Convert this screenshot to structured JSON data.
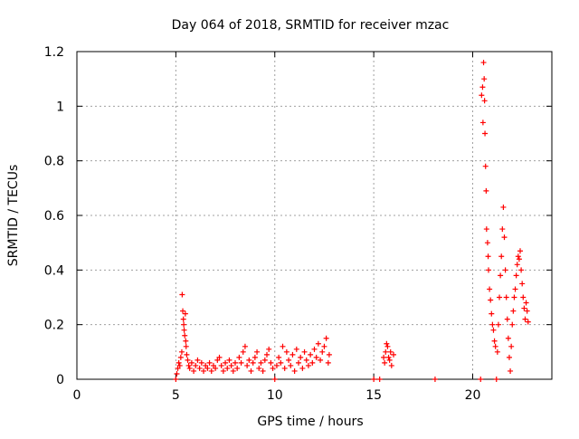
{
  "chart_data": {
    "type": "scatter",
    "title": "Day 064 of 2018, SRMTID for receiver mzac",
    "xlabel": "GPS time / hours",
    "ylabel": "SRMTID / TECUs",
    "xlim": [
      0,
      24
    ],
    "ylim": [
      0,
      1.2
    ],
    "xticks": [
      0,
      5,
      10,
      15,
      20
    ],
    "xtick_labels": [
      "0",
      "5",
      "10",
      "15",
      "20"
    ],
    "yticks": [
      0,
      0.2,
      0.4,
      0.6,
      0.8,
      1.0,
      1.2
    ],
    "ytick_labels": [
      "0",
      "0.2",
      "0.4",
      "0.6",
      "0.8",
      "1",
      "1.2"
    ],
    "grid": true,
    "marker": "+",
    "marker_color": "#ff0000",
    "series": [
      {
        "points": [
          [
            5.0,
            0.0
          ],
          [
            5.05,
            0.02
          ],
          [
            5.1,
            0.04
          ],
          [
            5.15,
            0.06
          ],
          [
            5.2,
            0.05
          ],
          [
            5.25,
            0.08
          ],
          [
            5.3,
            0.1
          ],
          [
            5.32,
            0.31
          ],
          [
            5.35,
            0.25
          ],
          [
            5.38,
            0.22
          ],
          [
            5.4,
            0.2
          ],
          [
            5.42,
            0.18
          ],
          [
            5.45,
            0.16
          ],
          [
            5.48,
            0.24
          ],
          [
            5.5,
            0.14
          ],
          [
            5.52,
            0.12
          ],
          [
            5.55,
            0.09
          ],
          [
            5.6,
            0.07
          ],
          [
            5.65,
            0.05
          ],
          [
            5.7,
            0.04
          ],
          [
            5.8,
            0.06
          ],
          [
            5.9,
            0.03
          ],
          [
            6.0,
            0.05
          ],
          [
            6.1,
            0.07
          ],
          [
            6.2,
            0.04
          ],
          [
            6.3,
            0.06
          ],
          [
            6.4,
            0.03
          ],
          [
            6.5,
            0.05
          ],
          [
            6.6,
            0.04
          ],
          [
            6.7,
            0.06
          ],
          [
            6.8,
            0.03
          ],
          [
            6.9,
            0.05
          ],
          [
            7.0,
            0.04
          ],
          [
            7.1,
            0.07
          ],
          [
            7.2,
            0.08
          ],
          [
            7.3,
            0.05
          ],
          [
            7.4,
            0.03
          ],
          [
            7.5,
            0.06
          ],
          [
            7.6,
            0.04
          ],
          [
            7.7,
            0.07
          ],
          [
            7.8,
            0.05
          ],
          [
            7.9,
            0.03
          ],
          [
            8.0,
            0.06
          ],
          [
            8.1,
            0.04
          ],
          [
            8.2,
            0.08
          ],
          [
            8.3,
            0.06
          ],
          [
            8.4,
            0.1
          ],
          [
            8.5,
            0.12
          ],
          [
            8.6,
            0.05
          ],
          [
            8.7,
            0.07
          ],
          [
            8.8,
            0.03
          ],
          [
            8.9,
            0.06
          ],
          [
            9.0,
            0.08
          ],
          [
            9.1,
            0.1
          ],
          [
            9.2,
            0.04
          ],
          [
            9.3,
            0.06
          ],
          [
            9.4,
            0.03
          ],
          [
            9.5,
            0.07
          ],
          [
            9.6,
            0.09
          ],
          [
            9.7,
            0.11
          ],
          [
            9.8,
            0.06
          ],
          [
            9.9,
            0.04
          ],
          [
            10.0,
            0.0
          ],
          [
            10.1,
            0.05
          ],
          [
            10.2,
            0.08
          ],
          [
            10.3,
            0.06
          ],
          [
            10.4,
            0.12
          ],
          [
            10.5,
            0.04
          ],
          [
            10.6,
            0.1
          ],
          [
            10.7,
            0.07
          ],
          [
            10.8,
            0.05
          ],
          [
            10.9,
            0.09
          ],
          [
            11.0,
            0.03
          ],
          [
            11.1,
            0.11
          ],
          [
            11.2,
            0.06
          ],
          [
            11.3,
            0.08
          ],
          [
            11.4,
            0.04
          ],
          [
            11.5,
            0.1
          ],
          [
            11.6,
            0.07
          ],
          [
            11.7,
            0.05
          ],
          [
            11.8,
            0.09
          ],
          [
            11.9,
            0.06
          ],
          [
            12.0,
            0.11
          ],
          [
            12.1,
            0.08
          ],
          [
            12.2,
            0.13
          ],
          [
            12.3,
            0.07
          ],
          [
            12.4,
            0.1
          ],
          [
            12.5,
            0.12
          ],
          [
            12.6,
            0.15
          ],
          [
            12.7,
            0.06
          ],
          [
            12.75,
            0.09
          ],
          [
            15.0,
            0.0
          ],
          [
            15.3,
            0.0
          ],
          [
            15.5,
            0.08
          ],
          [
            15.55,
            0.06
          ],
          [
            15.6,
            0.1
          ],
          [
            15.65,
            0.13
          ],
          [
            15.7,
            0.12
          ],
          [
            15.75,
            0.08
          ],
          [
            15.8,
            0.07
          ],
          [
            15.85,
            0.1
          ],
          [
            15.9,
            0.05
          ],
          [
            16.0,
            0.09
          ],
          [
            18.1,
            0.0
          ],
          [
            20.4,
            0.0
          ],
          [
            20.45,
            1.04
          ],
          [
            20.5,
            1.07
          ],
          [
            20.52,
            0.94
          ],
          [
            20.55,
            1.16
          ],
          [
            20.58,
            1.1
          ],
          [
            20.6,
            1.02
          ],
          [
            20.62,
            0.9
          ],
          [
            20.65,
            0.78
          ],
          [
            20.68,
            0.69
          ],
          [
            20.7,
            0.55
          ],
          [
            20.75,
            0.5
          ],
          [
            20.78,
            0.45
          ],
          [
            20.8,
            0.4
          ],
          [
            20.85,
            0.33
          ],
          [
            20.9,
            0.29
          ],
          [
            20.95,
            0.24
          ],
          [
            21.0,
            0.2
          ],
          [
            21.05,
            0.18
          ],
          [
            21.1,
            0.14
          ],
          [
            21.15,
            0.12
          ],
          [
            21.2,
            0.0
          ],
          [
            21.25,
            0.1
          ],
          [
            21.3,
            0.2
          ],
          [
            21.35,
            0.3
          ],
          [
            21.4,
            0.38
          ],
          [
            21.45,
            0.45
          ],
          [
            21.5,
            0.55
          ],
          [
            21.55,
            0.63
          ],
          [
            21.6,
            0.52
          ],
          [
            21.65,
            0.4
          ],
          [
            21.7,
            0.3
          ],
          [
            21.75,
            0.22
          ],
          [
            21.8,
            0.15
          ],
          [
            21.85,
            0.08
          ],
          [
            21.9,
            0.03
          ],
          [
            21.95,
            0.12
          ],
          [
            22.0,
            0.2
          ],
          [
            22.05,
            0.25
          ],
          [
            22.1,
            0.3
          ],
          [
            22.15,
            0.33
          ],
          [
            22.2,
            0.38
          ],
          [
            22.25,
            0.42
          ],
          [
            22.3,
            0.45
          ],
          [
            22.35,
            0.44
          ],
          [
            22.4,
            0.47
          ],
          [
            22.45,
            0.4
          ],
          [
            22.5,
            0.35
          ],
          [
            22.55,
            0.3
          ],
          [
            22.6,
            0.26
          ],
          [
            22.65,
            0.22
          ],
          [
            22.7,
            0.28
          ],
          [
            22.75,
            0.25
          ],
          [
            22.8,
            0.21
          ]
        ]
      }
    ]
  }
}
